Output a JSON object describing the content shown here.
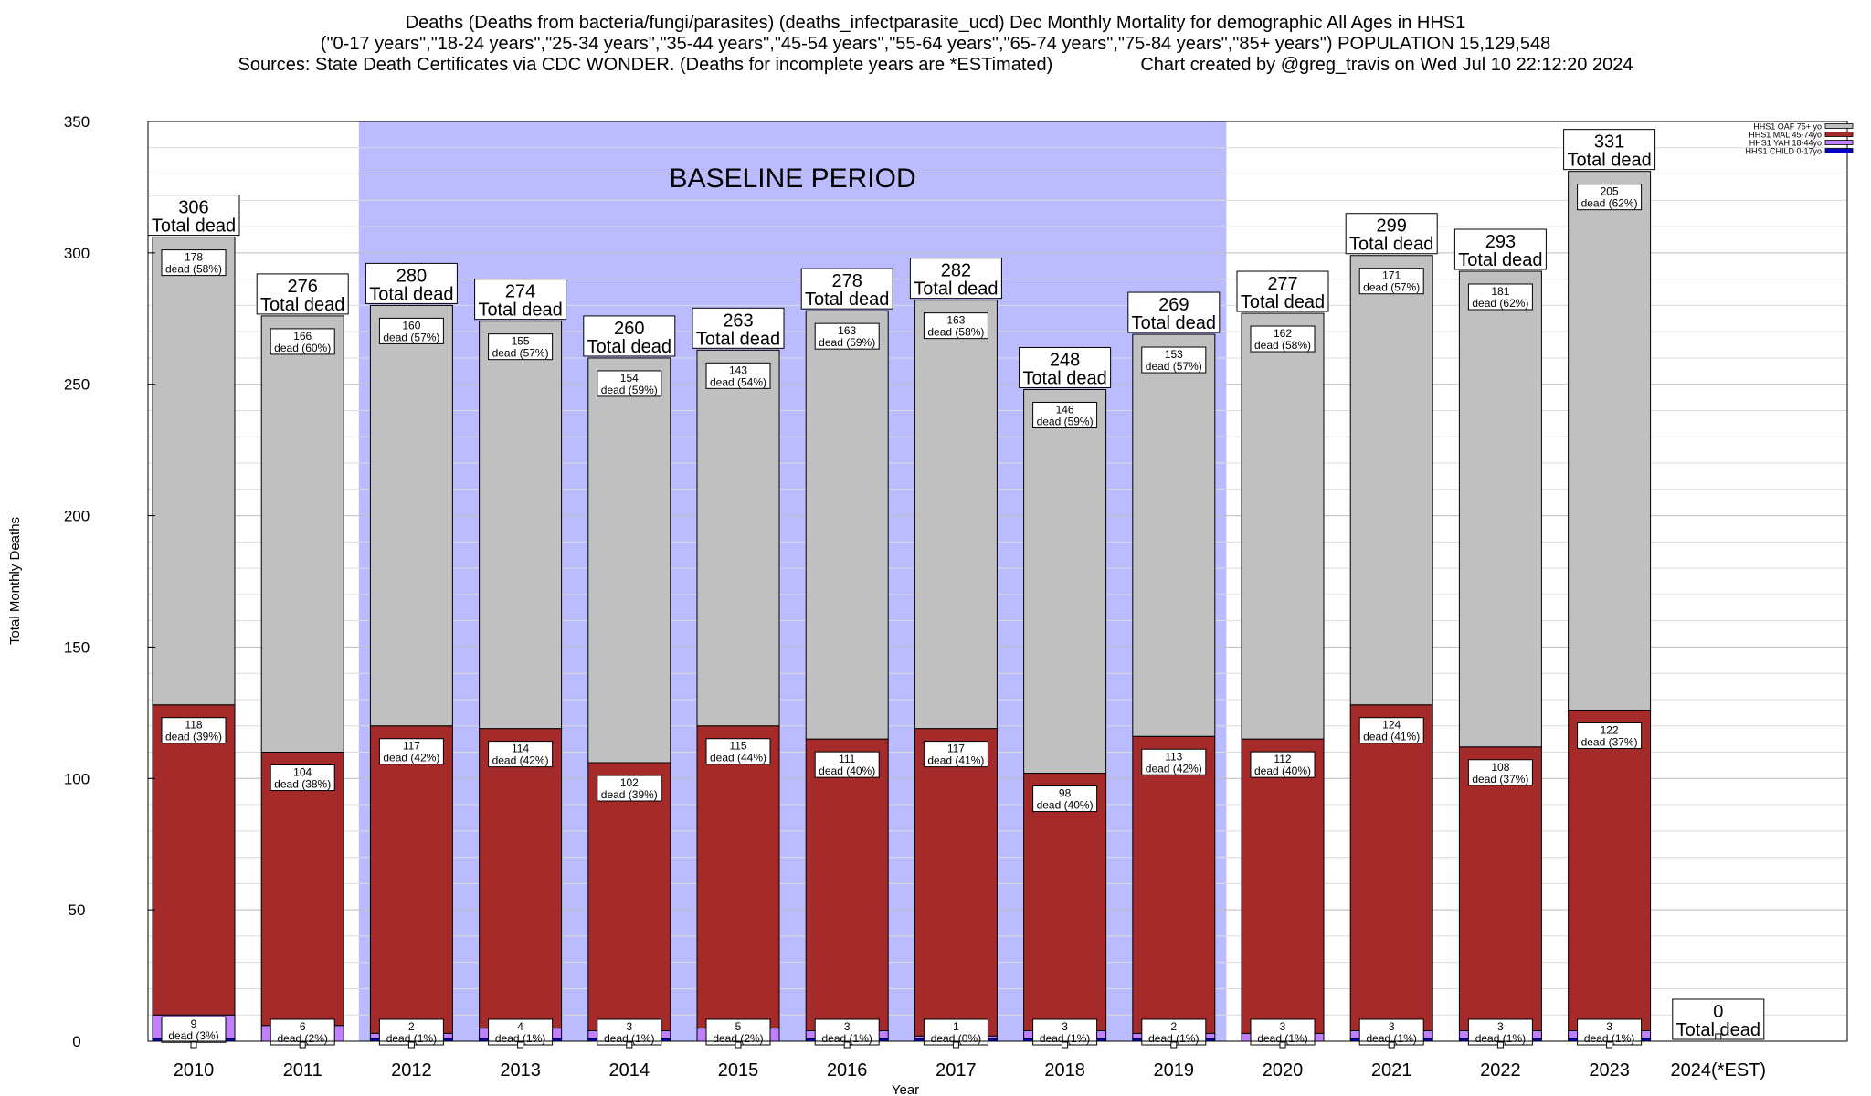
{
  "header": {
    "line1": "Deaths (Deaths from bacteria/fungi/parasites) (deaths_infectparasite_ucd) Dec Monthly Mortality for demographic All Ages in HHS1",
    "line2": "(\"0-17 years\",\"18-24 years\",\"25-34 years\",\"35-44 years\",\"45-54 years\",\"55-64 years\",\"65-74 years\",\"75-84 years\",\"85+ years\") POPULATION 15,129,548",
    "line3": "Sources: State Death Certificates via CDC WONDER. (Deaths for incomplete years are *ESTimated)",
    "line3b": "Chart created by @greg_travis on Wed Jul 10 22:12:20 2024"
  },
  "chart_data": {
    "type": "bar",
    "stacked": true,
    "title": "Deaths (Deaths from bacteria/fungi/parasites) (deaths_infectparasite_ucd) Dec Monthly Mortality for demographic All Ages in HHS1",
    "xlabel": "Year",
    "ylabel": "Total Monthly Deaths",
    "ylim": [
      0,
      350
    ],
    "yticks": [
      0,
      50,
      100,
      150,
      200,
      250,
      300,
      350
    ],
    "grid": true,
    "legend_position": "top-right",
    "categories": [
      "2010",
      "2011",
      "2012",
      "2013",
      "2014",
      "2015",
      "2016",
      "2017",
      "2018",
      "2019",
      "2020",
      "2021",
      "2022",
      "2023",
      "2024(*EST)"
    ],
    "totals": [
      306,
      276,
      280,
      274,
      260,
      263,
      278,
      282,
      248,
      269,
      277,
      299,
      293,
      331,
      0
    ],
    "total_label_suffix": "Total dead",
    "dead_label_prefix": "dead",
    "series": [
      {
        "name": "HHS1 CHILD 0-17yo",
        "color": "#0000c8",
        "values": [
          1,
          0,
          1,
          1,
          1,
          0,
          1,
          1,
          1,
          1,
          0,
          1,
          1,
          1,
          0
        ],
        "labels": []
      },
      {
        "name": "HHS1 YAH 18-44yo",
        "color": "#c080ff",
        "values": [
          9,
          6,
          2,
          4,
          3,
          5,
          3,
          1,
          3,
          2,
          3,
          3,
          3,
          3,
          0
        ],
        "labels": [
          "9",
          "6",
          "2",
          "4",
          "3",
          "5",
          "3",
          "1",
          "3",
          "2",
          "3",
          "3",
          "3",
          "3",
          ""
        ],
        "pct": [
          "(3%)",
          "(2%)",
          "(1%)",
          "(1%)",
          "(1%)",
          "(2%)",
          "(1%)",
          "(0%)",
          "(1%)",
          "(1%)",
          "(1%)",
          "(1%)",
          "(1%)",
          "(1%)",
          ""
        ]
      },
      {
        "name": "HHS1 MAL 45-74yo",
        "color": "#a52a2a",
        "values": [
          118,
          104,
          117,
          114,
          102,
          115,
          111,
          117,
          98,
          113,
          112,
          124,
          108,
          122,
          0
        ],
        "labels": [
          "118",
          "104",
          "117",
          "114",
          "102",
          "115",
          "111",
          "117",
          "98",
          "113",
          "112",
          "124",
          "108",
          "122",
          ""
        ],
        "pct": [
          "(39%)",
          "(38%)",
          "(42%)",
          "(42%)",
          "(39%)",
          "(44%)",
          "(40%)",
          "(41%)",
          "(40%)",
          "(42%)",
          "(40%)",
          "(41%)",
          "(37%)",
          "(37%)",
          ""
        ]
      },
      {
        "name": "HHS1 OAF 75+ yo",
        "color": "#c0c0c0",
        "values": [
          178,
          166,
          160,
          155,
          154,
          143,
          163,
          163,
          146,
          153,
          162,
          171,
          181,
          205,
          0
        ],
        "labels": [
          "178",
          "166",
          "160",
          "155",
          "154",
          "143",
          "163",
          "163",
          "146",
          "153",
          "162",
          "171",
          "181",
          "205",
          ""
        ],
        "pct": [
          "(58%)",
          "(60%)",
          "(57%)",
          "(57%)",
          "(59%)",
          "(54%)",
          "(59%)",
          "(58%)",
          "(59%)",
          "(57%)",
          "(58%)",
          "(57%)",
          "(62%)",
          "(62%)",
          ""
        ]
      }
    ],
    "legend_order": [
      "HHS1 OAF 75+ yo",
      "HHS1 MAL 45-74yo",
      "HHS1 YAH 18-44yo",
      "HHS1 CHILD 0-17yo"
    ],
    "annotations": [
      {
        "text": "BASELINE PERIOD",
        "x_start": "2012",
        "x_end": "2019",
        "color": "#bbbbff"
      }
    ]
  }
}
